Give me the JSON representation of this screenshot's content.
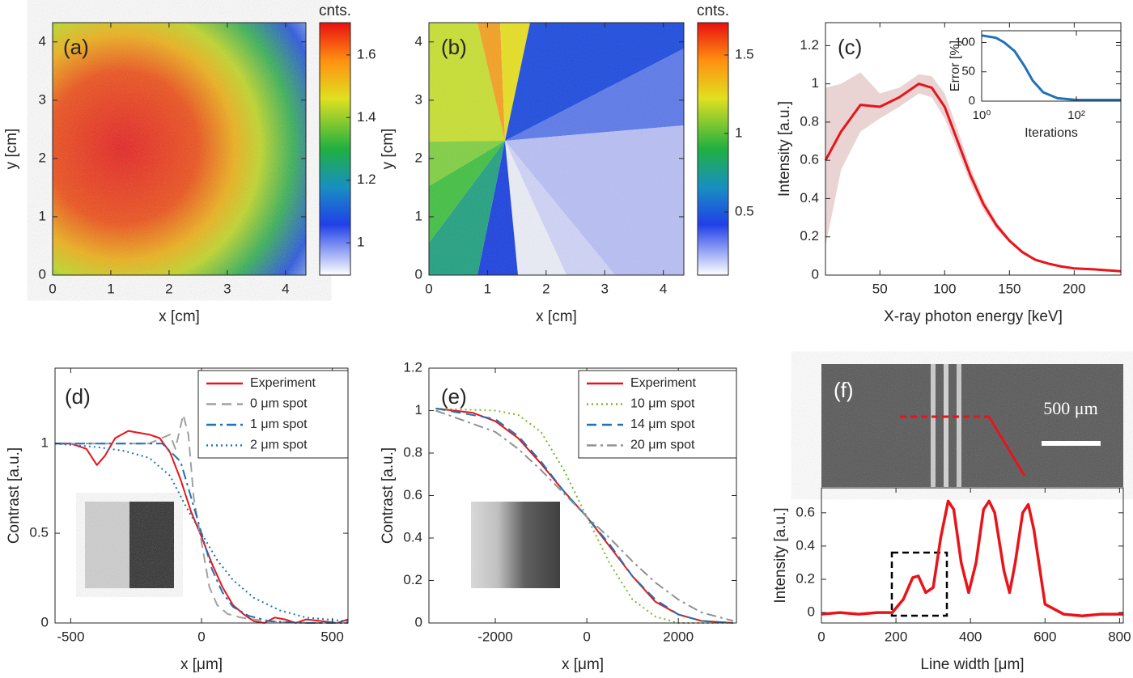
{
  "chart_data": [
    {
      "type": "heatmap",
      "label": "(a)",
      "xlabel": "x [cm]",
      "ylabel": "y [cm]",
      "xlim": [
        0,
        4.35
      ],
      "ylim": [
        0,
        4.33
      ],
      "xticks": [
        0,
        1,
        2,
        3,
        4
      ],
      "yticks": [
        0,
        1,
        2,
        3,
        4
      ],
      "colorbar_title": "cnts.",
      "clim": [
        0.897,
        1.703
      ],
      "cticks": [
        1,
        1.2,
        1.4,
        1.6
      ]
    },
    {
      "type": "heatmap",
      "label": "(b)",
      "xlabel": "x [cm]",
      "ylabel": "y [cm]",
      "xlim": [
        0,
        4.35
      ],
      "ylim": [
        0,
        4.33
      ],
      "xticks": [
        0,
        1,
        2,
        3,
        4
      ],
      "yticks": [
        0,
        1,
        2,
        3,
        4
      ],
      "colorbar_title": "cnts.",
      "clim": [
        0.098,
        1.706
      ],
      "cticks": [
        0.5,
        1,
        1.5
      ]
    },
    {
      "type": "line",
      "label": "(c)",
      "xlabel": "X-ray photon energy [keV]",
      "ylabel": "Intensity [a.u.]",
      "xlim": [
        8,
        236
      ],
      "ylim": [
        0,
        1.32
      ],
      "xticks": [
        50,
        100,
        150,
        200
      ],
      "yticks": [
        0,
        0.2,
        0.4,
        0.6,
        0.8,
        1,
        1.2
      ],
      "series": [
        {
          "color": "#e8141a",
          "band_color": "#e9d3d3",
          "style": "solid",
          "x": [
            8,
            20,
            35,
            50,
            65,
            80,
            90,
            100,
            110,
            120,
            130,
            140,
            150,
            160,
            170,
            180,
            190,
            200,
            215,
            236
          ],
          "values": [
            0.6,
            0.75,
            0.89,
            0.88,
            0.93,
            1.0,
            0.98,
            0.88,
            0.7,
            0.52,
            0.37,
            0.26,
            0.18,
            0.12,
            0.08,
            0.06,
            0.045,
            0.035,
            0.03,
            0.02
          ],
          "upper": [
            0.98,
            1.0,
            1.06,
            0.95,
            0.98,
            1.05,
            1.04,
            0.95,
            0.76,
            0.56,
            0.4,
            0.28,
            0.19,
            0.13,
            0.085,
            0.062,
            0.047,
            0.036,
            0.03,
            0.02
          ],
          "lower": [
            0.15,
            0.55,
            0.75,
            0.82,
            0.88,
            0.95,
            0.93,
            0.82,
            0.65,
            0.48,
            0.34,
            0.24,
            0.17,
            0.11,
            0.075,
            0.058,
            0.043,
            0.034,
            0.03,
            0.02
          ]
        }
      ]
    },
    {
      "type": "line",
      "xlabel": "Iterations",
      "ylabel": "Error [%]",
      "xlog": true,
      "xlim": [
        1,
        870
      ],
      "ylim": [
        0,
        120
      ],
      "xticks": [
        {
          "value": 1,
          "label": "10⁰"
        },
        {
          "value": 100,
          "label": "10²"
        }
      ],
      "yticks": [
        0,
        50,
        100
      ],
      "series": [
        {
          "color": "#1f72b8",
          "style": "solid",
          "x": [
            1,
            2,
            3,
            5,
            8,
            12,
            20,
            40,
            100,
            300,
            870
          ],
          "values": [
            112,
            108,
            100,
            85,
            60,
            35,
            15,
            5,
            2,
            2,
            2
          ]
        }
      ]
    },
    {
      "type": "line",
      "label": "(d)",
      "xlabel": "x [μm]",
      "ylabel": "Contrast [a.u.]",
      "xlim": [
        -560,
        560
      ],
      "ylim": [
        0,
        1.42
      ],
      "xticks": [
        -500,
        0,
        500
      ],
      "yticks": [
        0,
        0.5,
        1
      ],
      "series": [
        {
          "name": "Experiment",
          "color": "#e8141a",
          "style": "solid",
          "x": [
            -560,
            -500,
            -440,
            -400,
            -370,
            -330,
            -280,
            -240,
            -200,
            -160,
            -120,
            -80,
            -40,
            0,
            40,
            80,
            120,
            160,
            200,
            240,
            280,
            320,
            360,
            400,
            460,
            520,
            560
          ],
          "values": [
            1,
            1,
            0.97,
            0.88,
            0.93,
            1.03,
            1.07,
            1.06,
            1.05,
            1.03,
            0.95,
            0.8,
            0.62,
            0.48,
            0.33,
            0.2,
            0.1,
            0.05,
            0.01,
            0.0,
            0.03,
            0.02,
            0.0,
            0.02,
            0.01,
            0.0,
            0.02
          ]
        },
        {
          "name": "0 μm spot",
          "color": "#a0a0a0",
          "style": "dashed",
          "x": [
            -560,
            -300,
            -200,
            -120,
            -100,
            -70,
            -50,
            -30,
            0,
            30,
            60,
            100,
            150,
            250,
            400,
            560
          ],
          "values": [
            1,
            1,
            1.0,
            1.05,
            0.97,
            1.16,
            1.05,
            0.7,
            0.45,
            0.2,
            0.1,
            0.05,
            0.03,
            0.01,
            0,
            0
          ]
        },
        {
          "name": "1 μm spot",
          "color": "#1f72b8",
          "style": "dashdot",
          "x": [
            -560,
            -300,
            -150,
            -80,
            -40,
            0,
            40,
            80,
            120,
            180,
            260,
            400,
            560
          ],
          "values": [
            1,
            1.0,
            1.0,
            0.9,
            0.7,
            0.5,
            0.3,
            0.17,
            0.09,
            0.04,
            0.01,
            0,
            0
          ]
        },
        {
          "name": "2 μm spot",
          "color": "#1f72b8",
          "style": "dotted",
          "x": [
            -560,
            -400,
            -300,
            -200,
            -120,
            -60,
            0,
            60,
            120,
            200,
            300,
            400,
            560
          ],
          "values": [
            1,
            0.98,
            0.96,
            0.92,
            0.82,
            0.65,
            0.5,
            0.35,
            0.24,
            0.14,
            0.07,
            0.03,
            0.01
          ]
        }
      ]
    },
    {
      "type": "line",
      "label": "(e)",
      "xlabel": "x [μm]",
      "ylabel": "Contrast [a.u.]",
      "xlim": [
        -3450,
        3270
      ],
      "ylim": [
        0,
        1.2
      ],
      "xticks": [
        -2000,
        0,
        2000
      ],
      "yticks": [
        0,
        0.2,
        0.4,
        0.6,
        0.8,
        1,
        1.2
      ],
      "series": [
        {
          "name": "Experiment",
          "color": "#e8141a",
          "style": "solid",
          "x": [
            -3300,
            -2500,
            -2000,
            -1500,
            -1000,
            -500,
            0,
            500,
            1000,
            1500,
            2000,
            2500,
            3200
          ],
          "values": [
            1.01,
            0.99,
            0.95,
            0.87,
            0.75,
            0.62,
            0.5,
            0.36,
            0.22,
            0.1,
            0.04,
            0.01,
            0
          ]
        },
        {
          "name": "10 μm spot",
          "color": "#76b82a",
          "style": "dotted",
          "x": [
            -3300,
            -2000,
            -1500,
            -1000,
            -500,
            0,
            500,
            1000,
            1500,
            2000,
            3200
          ],
          "values": [
            1.01,
            1.0,
            0.98,
            0.9,
            0.72,
            0.5,
            0.28,
            0.11,
            0.03,
            0.0,
            0
          ]
        },
        {
          "name": "14 μm spot",
          "color": "#1f72b8",
          "style": "dashed",
          "x": [
            -3300,
            -2000,
            -1500,
            -1000,
            -500,
            0,
            500,
            1000,
            1500,
            2000,
            2500,
            3200
          ],
          "values": [
            1.01,
            0.96,
            0.88,
            0.76,
            0.62,
            0.5,
            0.37,
            0.22,
            0.11,
            0.04,
            0.01,
            0
          ]
        },
        {
          "name": "20 μm spot",
          "color": "#909090",
          "style": "dashdot",
          "x": [
            -3300,
            -2000,
            -1500,
            -1000,
            -500,
            0,
            500,
            1000,
            1500,
            2000,
            2500,
            3200
          ],
          "values": [
            1.0,
            0.9,
            0.82,
            0.72,
            0.61,
            0.5,
            0.4,
            0.29,
            0.19,
            0.11,
            0.05,
            0.01
          ]
        }
      ]
    },
    {
      "type": "line",
      "label": "(f)",
      "annotation": "500 μm",
      "xlabel": "Line width [μm]",
      "ylabel": "Intensity [a.u.]",
      "xlim": [
        0,
        810
      ],
      "ylim": [
        -0.063,
        0.75
      ],
      "xticks": [
        0,
        200,
        400,
        600,
        800
      ],
      "yticks": [
        0,
        0.2,
        0.4,
        0.6
      ],
      "series": [
        {
          "color": "#e8141a",
          "style": "solid",
          "x": [
            0,
            50,
            100,
            150,
            190,
            220,
            245,
            260,
            280,
            300,
            320,
            340,
            355,
            375,
            395,
            415,
            435,
            450,
            465,
            490,
            505,
            520,
            540,
            555,
            570,
            600,
            650,
            700,
            750,
            810
          ],
          "values": [
            -0.01,
            0,
            -0.01,
            0,
            0,
            0.08,
            0.21,
            0.22,
            0.12,
            0.15,
            0.45,
            0.67,
            0.62,
            0.3,
            0.12,
            0.3,
            0.62,
            0.67,
            0.6,
            0.25,
            0.12,
            0.3,
            0.6,
            0.65,
            0.5,
            0.05,
            -0.01,
            -0.02,
            -0.01,
            -0.01
          ]
        }
      ]
    }
  ]
}
